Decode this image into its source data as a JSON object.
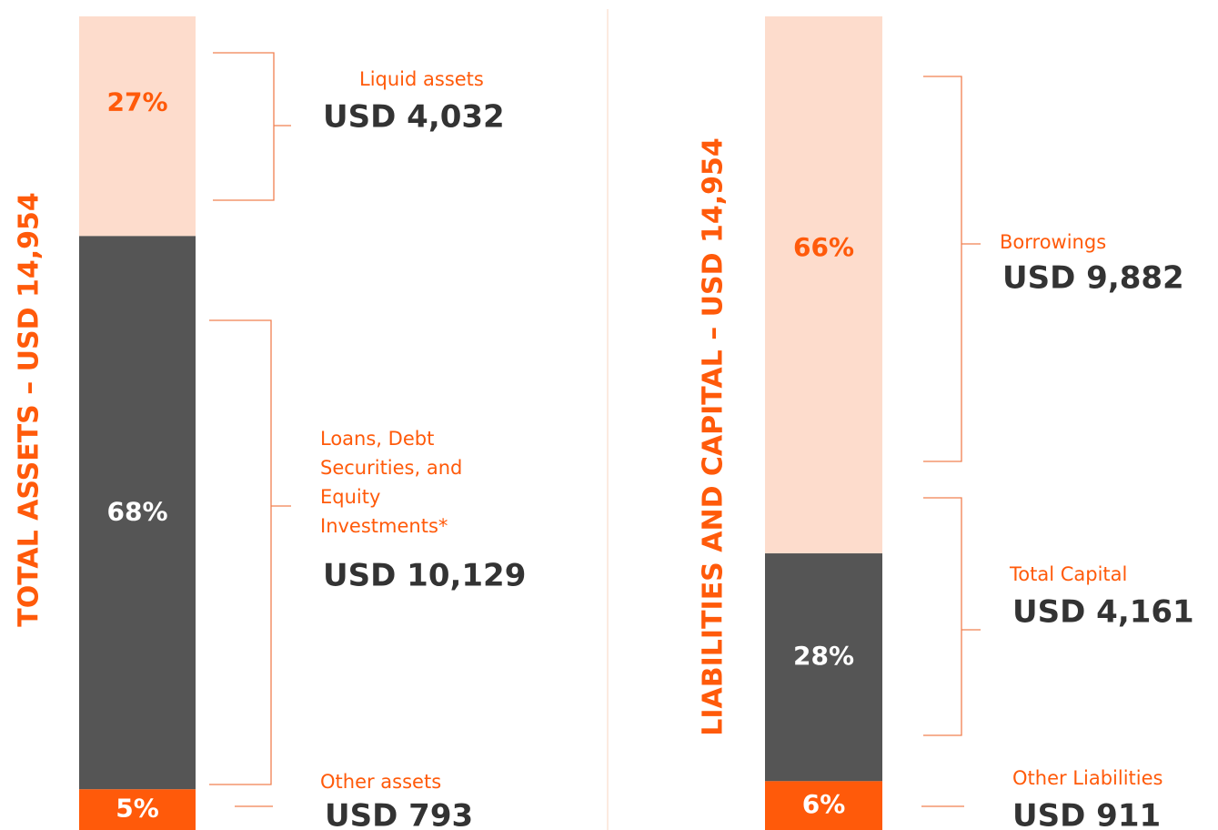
{
  "chart_data": [
    {
      "type": "stacked_bar",
      "title": "TOTAL ASSETS – USD 14,954",
      "series": [
        {
          "name": "Liquid assets",
          "color": "#fddccc",
          "values": [
            27
          ],
          "value_labels": [
            "27%"
          ],
          "amount": "USD 4,032"
        },
        {
          "name": "Loans, Debt Securities, and Equity Investments*",
          "color": "#555555",
          "values": [
            68
          ],
          "value_labels": [
            "68%"
          ],
          "amount": "USD 10,129"
        },
        {
          "name": "Other assets",
          "color": "#ff5a0a",
          "values": [
            5
          ],
          "value_labels": [
            "5%"
          ],
          "amount": "USD 793"
        }
      ]
    },
    {
      "type": "stacked_bar",
      "title": "LIABILITIES AND CAPITAL – USD 14,954",
      "series": [
        {
          "name": "Borrowings",
          "color": "#fddccc",
          "values": [
            66
          ],
          "value_labels": [
            "66%"
          ],
          "amount": "USD 9,882"
        },
        {
          "name": "Total Capital",
          "color": "#555555",
          "values": [
            28
          ],
          "value_labels": [
            "28%"
          ],
          "amount": "USD 4,161"
        },
        {
          "name": "Other Liabilities",
          "color": "#ff5a0a",
          "values": [
            6
          ],
          "value_labels": [
            "6%"
          ],
          "amount": "USD 911"
        }
      ]
    }
  ]
}
